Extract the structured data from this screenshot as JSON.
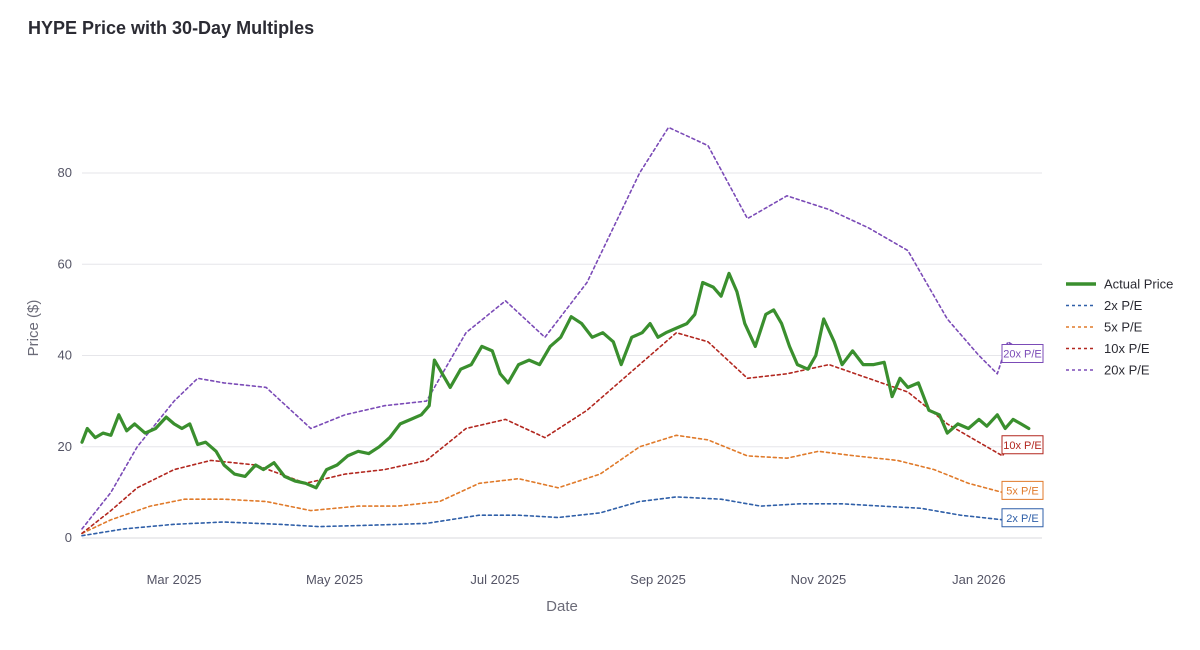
{
  "chart_data": {
    "type": "line",
    "title": "HYPE Price with 30-Day Multiples",
    "xlabel": "Date",
    "ylabel": "Price ($)",
    "x_range": [
      "2025-01-25",
      "2026-01-25"
    ],
    "ylim": [
      0,
      96
    ],
    "y_ticks": [
      0,
      20,
      40,
      60,
      80
    ],
    "x_ticks": [
      {
        "date": "2025-03-01",
        "label": "Mar 2025"
      },
      {
        "date": "2025-05-01",
        "label": "May 2025"
      },
      {
        "date": "2025-07-01",
        "label": "Jul 2025"
      },
      {
        "date": "2025-09-01",
        "label": "Sep 2025"
      },
      {
        "date": "2025-11-01",
        "label": "Nov 2025"
      },
      {
        "date": "2026-01-01",
        "label": "Jan 2026"
      }
    ],
    "grid": true,
    "legend_position": "right",
    "series": [
      {
        "name": "Actual Price",
        "color": "#3a8f2e",
        "style": "solid",
        "points": [
          [
            "2025-01-25",
            21
          ],
          [
            "2025-01-27",
            24
          ],
          [
            "2025-01-30",
            22
          ],
          [
            "2025-02-02",
            23
          ],
          [
            "2025-02-05",
            22.5
          ],
          [
            "2025-02-08",
            27
          ],
          [
            "2025-02-11",
            23.5
          ],
          [
            "2025-02-14",
            25
          ],
          [
            "2025-02-18",
            23
          ],
          [
            "2025-02-22",
            24
          ],
          [
            "2025-02-26",
            26.5
          ],
          [
            "2025-03-01",
            25
          ],
          [
            "2025-03-04",
            24
          ],
          [
            "2025-03-07",
            25
          ],
          [
            "2025-03-10",
            20.5
          ],
          [
            "2025-03-13",
            21
          ],
          [
            "2025-03-17",
            19
          ],
          [
            "2025-03-20",
            16
          ],
          [
            "2025-03-24",
            14
          ],
          [
            "2025-03-28",
            13.5
          ],
          [
            "2025-04-01",
            16
          ],
          [
            "2025-04-04",
            15
          ],
          [
            "2025-04-08",
            16.5
          ],
          [
            "2025-04-12",
            13.5
          ],
          [
            "2025-04-16",
            12.5
          ],
          [
            "2025-04-20",
            12
          ],
          [
            "2025-04-24",
            11
          ],
          [
            "2025-04-28",
            15
          ],
          [
            "2025-05-02",
            16
          ],
          [
            "2025-05-06",
            18
          ],
          [
            "2025-05-10",
            19
          ],
          [
            "2025-05-14",
            18.5
          ],
          [
            "2025-05-18",
            20
          ],
          [
            "2025-05-22",
            22
          ],
          [
            "2025-05-26",
            25
          ],
          [
            "2025-05-30",
            26
          ],
          [
            "2025-06-03",
            27
          ],
          [
            "2025-06-06",
            29
          ],
          [
            "2025-06-08",
            39
          ],
          [
            "2025-06-11",
            36
          ],
          [
            "2025-06-14",
            33
          ],
          [
            "2025-06-18",
            37
          ],
          [
            "2025-06-22",
            38
          ],
          [
            "2025-06-26",
            42
          ],
          [
            "2025-06-30",
            41
          ],
          [
            "2025-07-03",
            36
          ],
          [
            "2025-07-06",
            34
          ],
          [
            "2025-07-10",
            38
          ],
          [
            "2025-07-14",
            39
          ],
          [
            "2025-07-18",
            38
          ],
          [
            "2025-07-22",
            42
          ],
          [
            "2025-07-26",
            44
          ],
          [
            "2025-07-30",
            48.5
          ],
          [
            "2025-08-03",
            47
          ],
          [
            "2025-08-07",
            44
          ],
          [
            "2025-08-11",
            45
          ],
          [
            "2025-08-15",
            43
          ],
          [
            "2025-08-18",
            38
          ],
          [
            "2025-08-22",
            44
          ],
          [
            "2025-08-26",
            45
          ],
          [
            "2025-08-29",
            47
          ],
          [
            "2025-09-01",
            44
          ],
          [
            "2025-09-04",
            45
          ],
          [
            "2025-09-08",
            46
          ],
          [
            "2025-09-12",
            47
          ],
          [
            "2025-09-15",
            49
          ],
          [
            "2025-09-18",
            56
          ],
          [
            "2025-09-22",
            55
          ],
          [
            "2025-09-25",
            53
          ],
          [
            "2025-09-28",
            58
          ],
          [
            "2025-10-01",
            54
          ],
          [
            "2025-10-04",
            47
          ],
          [
            "2025-10-08",
            42
          ],
          [
            "2025-10-12",
            49
          ],
          [
            "2025-10-15",
            50
          ],
          [
            "2025-10-18",
            47
          ],
          [
            "2025-10-21",
            42
          ],
          [
            "2025-10-24",
            38
          ],
          [
            "2025-10-28",
            37
          ],
          [
            "2025-10-31",
            40
          ],
          [
            "2025-11-03",
            48
          ],
          [
            "2025-11-07",
            43
          ],
          [
            "2025-11-10",
            38
          ],
          [
            "2025-11-14",
            41
          ],
          [
            "2025-11-18",
            38
          ],
          [
            "2025-11-22",
            38
          ],
          [
            "2025-11-26",
            38.5
          ],
          [
            "2025-11-29",
            31
          ],
          [
            "2025-12-02",
            35
          ],
          [
            "2025-12-05",
            33
          ],
          [
            "2025-12-09",
            34
          ],
          [
            "2025-12-13",
            28
          ],
          [
            "2025-12-17",
            27
          ],
          [
            "2025-12-20",
            23
          ],
          [
            "2025-12-24",
            25
          ],
          [
            "2025-12-28",
            24
          ],
          [
            "2026-01-01",
            26
          ],
          [
            "2026-01-04",
            24.5
          ],
          [
            "2026-01-08",
            27
          ],
          [
            "2026-01-11",
            24
          ],
          [
            "2026-01-14",
            26
          ],
          [
            "2026-01-17",
            25
          ],
          [
            "2026-01-20",
            24
          ]
        ]
      },
      {
        "name": "2x P/E",
        "color": "#2f5fa8",
        "style": "dashed",
        "points": [
          [
            "2025-01-25",
            0.5
          ],
          [
            "2025-02-10",
            2
          ],
          [
            "2025-03-01",
            3
          ],
          [
            "2025-03-20",
            3.5
          ],
          [
            "2025-04-10",
            3
          ],
          [
            "2025-04-25",
            2.5
          ],
          [
            "2025-05-15",
            2.8
          ],
          [
            "2025-06-05",
            3.2
          ],
          [
            "2025-06-25",
            5
          ],
          [
            "2025-07-10",
            5
          ],
          [
            "2025-07-25",
            4.5
          ],
          [
            "2025-08-10",
            5.5
          ],
          [
            "2025-08-25",
            8
          ],
          [
            "2025-09-08",
            9
          ],
          [
            "2025-09-25",
            8.5
          ],
          [
            "2025-10-10",
            7
          ],
          [
            "2025-10-25",
            7.5
          ],
          [
            "2025-11-10",
            7.5
          ],
          [
            "2025-11-25",
            7
          ],
          [
            "2025-12-10",
            6.5
          ],
          [
            "2025-12-25",
            5
          ],
          [
            "2026-01-10",
            4
          ],
          [
            "2026-01-20",
            4
          ]
        ]
      },
      {
        "name": "5x P/E",
        "color": "#e07a2a",
        "style": "dashed",
        "points": [
          [
            "2025-01-25",
            1
          ],
          [
            "2025-02-05",
            4
          ],
          [
            "2025-02-20",
            7
          ],
          [
            "2025-03-05",
            8.5
          ],
          [
            "2025-03-20",
            8.5
          ],
          [
            "2025-04-05",
            8
          ],
          [
            "2025-04-22",
            6
          ],
          [
            "2025-05-10",
            7
          ],
          [
            "2025-05-25",
            7
          ],
          [
            "2025-06-10",
            8
          ],
          [
            "2025-06-25",
            12
          ],
          [
            "2025-07-10",
            13
          ],
          [
            "2025-07-25",
            11
          ],
          [
            "2025-08-10",
            14
          ],
          [
            "2025-08-25",
            20
          ],
          [
            "2025-09-08",
            22.5
          ],
          [
            "2025-09-20",
            21.5
          ],
          [
            "2025-10-05",
            18
          ],
          [
            "2025-10-20",
            17.5
          ],
          [
            "2025-11-01",
            19
          ],
          [
            "2025-11-15",
            18
          ],
          [
            "2025-12-01",
            17
          ],
          [
            "2025-12-15",
            15
          ],
          [
            "2025-12-28",
            12
          ],
          [
            "2026-01-10",
            10
          ],
          [
            "2026-01-20",
            10
          ]
        ]
      },
      {
        "name": "10x P/E",
        "color": "#b2271f",
        "style": "dashed",
        "points": [
          [
            "2025-01-25",
            1
          ],
          [
            "2025-02-05",
            6
          ],
          [
            "2025-02-15",
            11
          ],
          [
            "2025-03-01",
            15
          ],
          [
            "2025-03-15",
            17
          ],
          [
            "2025-04-01",
            16
          ],
          [
            "2025-04-20",
            12
          ],
          [
            "2025-05-05",
            14
          ],
          [
            "2025-05-20",
            15
          ],
          [
            "2025-06-05",
            17
          ],
          [
            "2025-06-20",
            24
          ],
          [
            "2025-07-05",
            26
          ],
          [
            "2025-07-20",
            22
          ],
          [
            "2025-08-05",
            28
          ],
          [
            "2025-08-25",
            38
          ],
          [
            "2025-09-08",
            45
          ],
          [
            "2025-09-20",
            43
          ],
          [
            "2025-10-05",
            35
          ],
          [
            "2025-10-20",
            36
          ],
          [
            "2025-11-05",
            38
          ],
          [
            "2025-11-20",
            35
          ],
          [
            "2025-12-05",
            32
          ],
          [
            "2025-12-20",
            25
          ],
          [
            "2026-01-01",
            21
          ],
          [
            "2026-01-10",
            18
          ],
          [
            "2026-01-14",
            22
          ],
          [
            "2026-01-20",
            20
          ]
        ]
      },
      {
        "name": "20x P/E",
        "color": "#7b4bb7",
        "style": "dashed",
        "points": [
          [
            "2025-01-25",
            2
          ],
          [
            "2025-02-05",
            10
          ],
          [
            "2025-02-15",
            20
          ],
          [
            "2025-03-01",
            30
          ],
          [
            "2025-03-10",
            35
          ],
          [
            "2025-03-20",
            34
          ],
          [
            "2025-04-05",
            33
          ],
          [
            "2025-04-22",
            24
          ],
          [
            "2025-05-05",
            27
          ],
          [
            "2025-05-20",
            29
          ],
          [
            "2025-06-05",
            30
          ],
          [
            "2025-06-20",
            45
          ],
          [
            "2025-07-05",
            52
          ],
          [
            "2025-07-20",
            44
          ],
          [
            "2025-08-05",
            56
          ],
          [
            "2025-08-25",
            80
          ],
          [
            "2025-09-05",
            90
          ],
          [
            "2025-09-20",
            86
          ],
          [
            "2025-10-05",
            70
          ],
          [
            "2025-10-20",
            75
          ],
          [
            "2025-11-05",
            72
          ],
          [
            "2025-11-20",
            68
          ],
          [
            "2025-12-05",
            63
          ],
          [
            "2025-12-20",
            48
          ],
          [
            "2026-01-01",
            40
          ],
          [
            "2026-01-08",
            36
          ],
          [
            "2026-01-12",
            43
          ],
          [
            "2026-01-20",
            40
          ]
        ]
      }
    ],
    "end_labels": [
      {
        "text": "20x P/E",
        "color": "#7b4bb7"
      },
      {
        "text": "10x P/E",
        "color": "#b2271f"
      },
      {
        "text": "5x P/E",
        "color": "#e07a2a"
      },
      {
        "text": "2x P/E",
        "color": "#2f5fa8"
      }
    ]
  }
}
